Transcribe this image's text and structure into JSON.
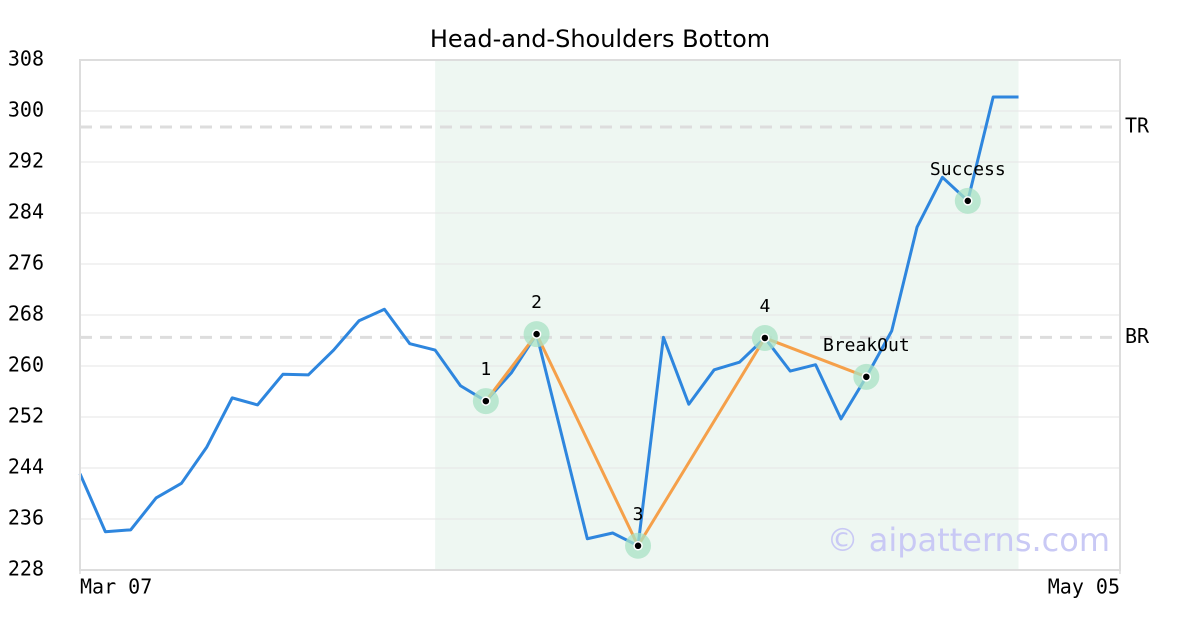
{
  "chart_data": {
    "type": "line",
    "title": "Head-and-Shoulders Bottom",
    "x": [
      0,
      1,
      2,
      3,
      4,
      5,
      6,
      7,
      8,
      9,
      10,
      11,
      12,
      13,
      14,
      15,
      16,
      17,
      18,
      19,
      20,
      21,
      22,
      23,
      24,
      25,
      26,
      27,
      28,
      29,
      30,
      31,
      32,
      33,
      34,
      35,
      36,
      37
    ],
    "xlim": [
      0,
      41
    ],
    "xticks": [
      {
        "value": 0,
        "label": "Mar 07"
      },
      {
        "value": 41,
        "label": "May 05"
      }
    ],
    "ylim": [
      228,
      308
    ],
    "yticks": [
      228,
      236,
      244,
      252,
      260,
      268,
      276,
      284,
      292,
      300,
      308
    ],
    "grid": true,
    "series": [
      {
        "color": "#2e86de",
        "values": [
          243.1,
          234.0,
          234.3,
          239.3,
          241.6,
          247.3,
          255.0,
          253.9,
          258.7,
          258.6,
          262.5,
          267.1,
          268.9,
          263.5,
          262.5,
          256.9,
          254.5,
          258.9,
          265.0,
          249.0,
          232.9,
          233.8,
          231.8,
          264.5,
          254.0,
          259.4,
          260.6,
          264.4,
          259.2,
          260.2,
          251.7,
          258.3,
          265.5,
          281.8,
          289.6,
          285.9,
          302.2,
          302.2
        ]
      }
    ],
    "highlight_range": [
      14,
      37
    ],
    "highlight_color": "#eef7f2",
    "pattern": {
      "color": "#f5a04a",
      "x": [
        16,
        18,
        22,
        27,
        31
      ],
      "values": [
        254.5,
        265.0,
        231.8,
        264.4,
        258.3
      ],
      "labels": [
        "1",
        "2",
        "3",
        "4",
        "BreakOut"
      ]
    },
    "signals": {
      "x": [
        35
      ],
      "values": [
        285.9
      ],
      "labels": [
        "Success"
      ]
    },
    "levels": [
      {
        "label": "TR",
        "value": 297.5
      },
      {
        "label": "BR",
        "value": 264.5
      }
    ],
    "watermark": "© aipatterns.com"
  }
}
